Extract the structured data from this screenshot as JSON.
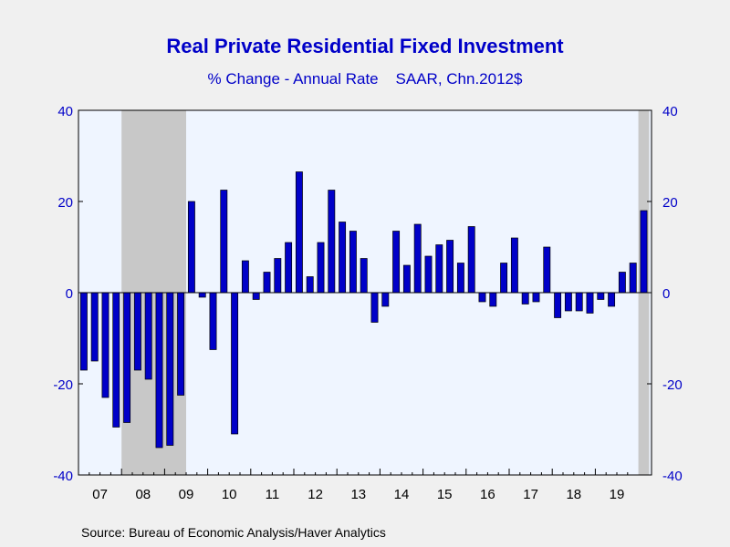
{
  "chart_data": {
    "type": "bar",
    "title": "Real Private Residential Fixed Investment",
    "subtitle": "% Change - Annual Rate    SAAR, Chn.2012$",
    "source": "Source:  Bureau of Economic Analysis/Haver Analytics",
    "ylim": [
      -40,
      40
    ],
    "y_ticks": [
      -40,
      -20,
      0,
      20,
      40
    ],
    "year_labels": [
      "07",
      "08",
      "09",
      "10",
      "11",
      "12",
      "13",
      "14",
      "15",
      "16",
      "17",
      "18",
      "19"
    ],
    "x_start": "2007Q1",
    "frequency": "quarterly",
    "recession_shading": [
      {
        "start": "2008Q1",
        "end": "2009Q2"
      },
      {
        "start": "2020Q1",
        "end": "2020Q1"
      }
    ],
    "series": [
      {
        "values": [
          -17,
          -15,
          -23,
          -29.5,
          -28.5,
          -17,
          -19,
          -34,
          -33.5,
          -22.5,
          20,
          -1,
          -12.5,
          22.5,
          -31,
          7,
          -1.5,
          4.5,
          7.5,
          11,
          26.5,
          3.5,
          11,
          22.5,
          15.5,
          13.5,
          7.5,
          -6.5,
          -3,
          13.5,
          6,
          15,
          8,
          10.5,
          11.5,
          6.5,
          14.5,
          -2,
          -3,
          6.5,
          12,
          -2.5,
          -2,
          10,
          -5.5,
          -4,
          -4,
          -4.5,
          -1.5,
          -3,
          4.5,
          6.5,
          18
        ]
      }
    ],
    "colors": {
      "bar": "#0000c8",
      "text": "#0000c8",
      "plot_bg": "#eff5ff",
      "recession": "#c8c8c8"
    }
  }
}
